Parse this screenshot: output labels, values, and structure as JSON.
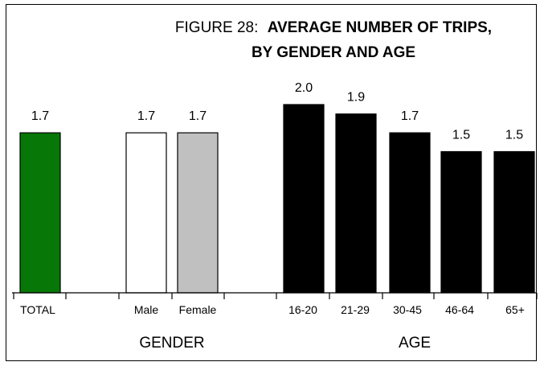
{
  "chart_data": {
    "type": "bar",
    "title_prefix": "FIGURE 28:",
    "title_line1": "AVERAGE NUMBER OF TRIPS,",
    "title_line2": "BY GENDER AND AGE",
    "categories": [
      "TOTAL",
      "Male",
      "Female",
      "16-20",
      "21-29",
      "30-45",
      "46-64",
      "65+"
    ],
    "values": [
      1.7,
      1.7,
      1.7,
      2.0,
      1.9,
      1.7,
      1.5,
      1.5
    ],
    "value_labels": [
      "1.7",
      "1.7",
      "1.7",
      "2.0",
      "1.9",
      "1.7",
      "1.5",
      "1.5"
    ],
    "groups": [
      "GENDER",
      "AGE"
    ],
    "ylim": [
      0,
      2.2
    ],
    "grid": false,
    "colors": {
      "total": "#077807",
      "male": "#ffffff",
      "female": "#c0c0c0",
      "age": "#000000",
      "outline": "#000000"
    }
  }
}
